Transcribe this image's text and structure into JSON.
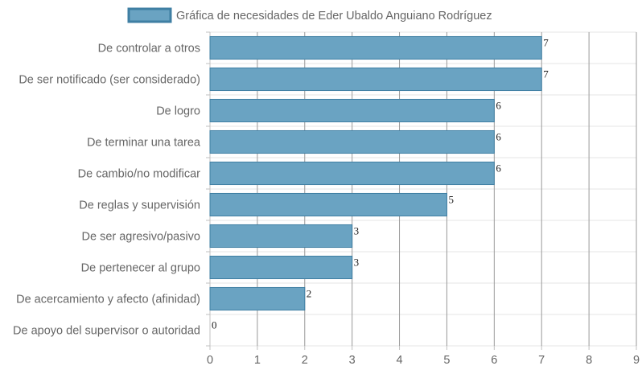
{
  "chart_data": {
    "type": "bar",
    "orientation": "horizontal",
    "title": "",
    "xlabel": "",
    "ylabel": "",
    "categories": [
      "De controlar a otros",
      "De ser notificado (ser considerado)",
      "De logro",
      "De terminar una tarea",
      "De cambio/no modificar",
      "De reglas y supervisión",
      "De ser agresivo/pasivo",
      "De pertenecer al grupo",
      "De acercamiento y afecto (afinidad)",
      "De apoyo del supervisor o autoridad"
    ],
    "series": [
      {
        "name": "Gráfica de necesidades de Eder Ubaldo Anguiano Rodríguez",
        "values": [
          7,
          7,
          6,
          6,
          6,
          5,
          3,
          3,
          2,
          0
        ],
        "color": "#6aa3c2",
        "border_color": "#3f7fa3"
      }
    ],
    "xlim": [
      0,
      9
    ],
    "x_ticks": [
      "0",
      "1",
      "2",
      "3",
      "4",
      "5",
      "6",
      "7",
      "8",
      "9"
    ],
    "grid": true,
    "data_labels": true,
    "legend": "top"
  }
}
